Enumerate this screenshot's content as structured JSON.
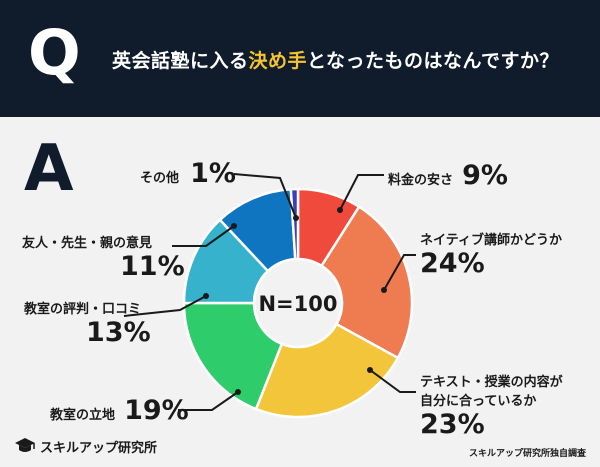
{
  "header": {
    "q_letter": "Q",
    "question_pre": "英会話塾に入る",
    "question_highlight": "決め手",
    "question_post": "となったものはなんですか？"
  },
  "answer_letter": "A",
  "chart_data": {
    "type": "pie",
    "center_label": "N=100",
    "slices": [
      {
        "label": "料金の安さ",
        "value": 9,
        "value_label": "9%",
        "color": "#f04a3c"
      },
      {
        "label": "ネイティブ講師かどうか",
        "value": 24,
        "value_label": "24%",
        "color": "#ef7b50"
      },
      {
        "label": "テキスト・授業の内容が自分に合っているか",
        "value": 23,
        "value_label": "23%",
        "color": "#f3c53b"
      },
      {
        "label": "教室の立地",
        "value": 19,
        "value_label": "19%",
        "color": "#2ecc6b"
      },
      {
        "label": "教室の評判・口コミ",
        "value": 13,
        "value_label": "13%",
        "color": "#37b2cc"
      },
      {
        "label": "友人・先生・親の意見",
        "value": 11,
        "value_label": "11%",
        "color": "#0f75c0"
      },
      {
        "label": "その他",
        "value": 1,
        "value_label": "1%",
        "color": "#3b3fbf"
      }
    ]
  },
  "labels": {
    "ryokin": {
      "name": "料金の安さ",
      "pct": "9%"
    },
    "native": {
      "name": "ネイティブ講師かどうか",
      "pct": "24%"
    },
    "text1": "テキスト・授業の内容が",
    "text2": "自分に合っているか",
    "text_pct": "23%",
    "ritchi": {
      "name": "教室の立地",
      "pct": "19%"
    },
    "hyoban": {
      "name": "教室の評判・口コミ",
      "pct": "13%"
    },
    "yujin": {
      "name": "友人・先生・親の意見",
      "pct": "11%"
    },
    "sonota": {
      "name": "その他",
      "pct": "1%"
    }
  },
  "footer": {
    "logo_icon": "graduation-cap-icon",
    "logo_text": "スキルアップ研究所",
    "source": "スキルアップ研究所独自調査"
  }
}
